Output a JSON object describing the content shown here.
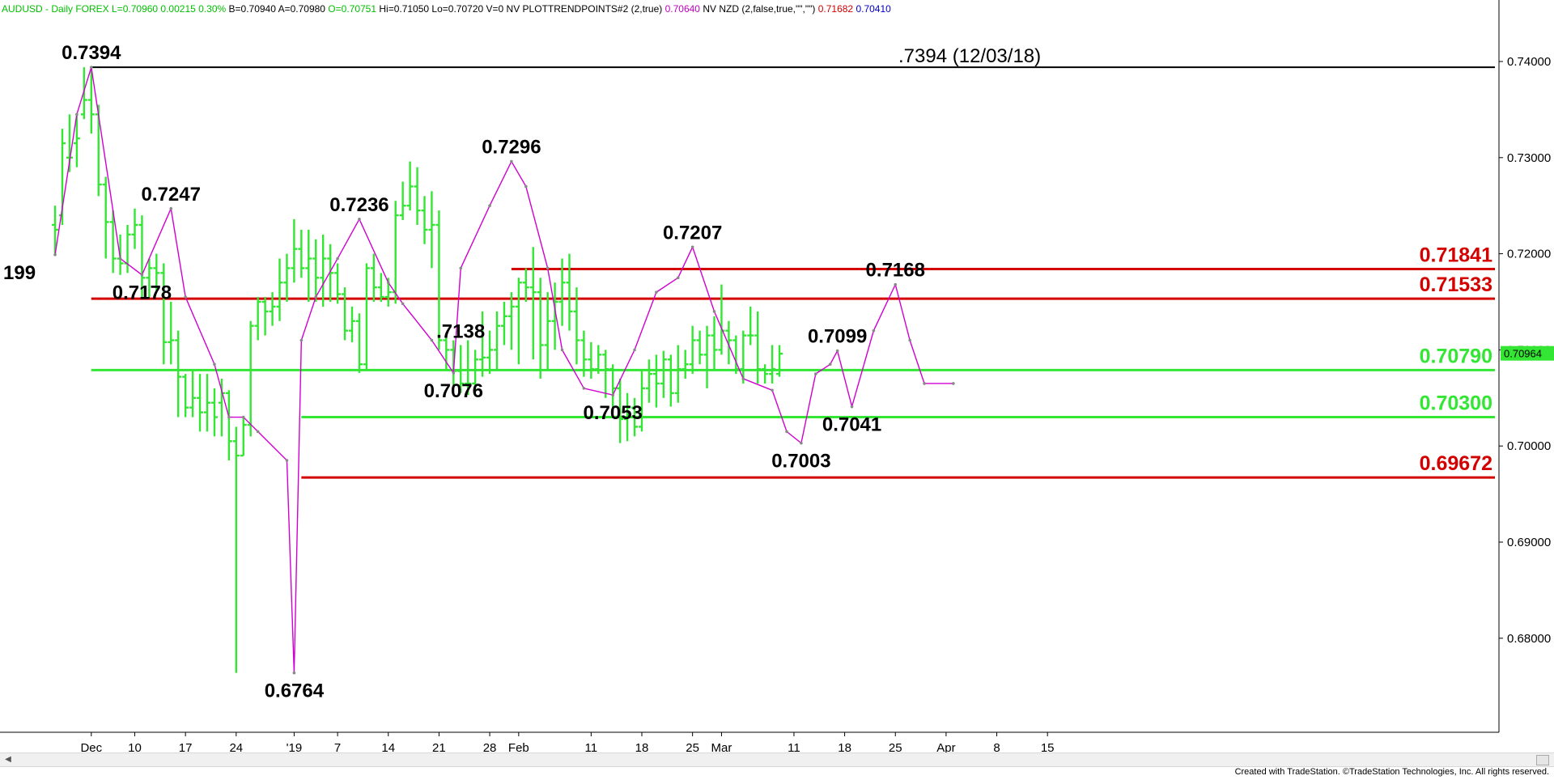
{
  "header": {
    "segments": [
      {
        "text": "AUDUSD - Daily  FOREX",
        "color": "#00c000"
      },
      {
        "text": "L=0.70960",
        "color": "#00c000"
      },
      {
        "text": "0.00215",
        "color": "#00c000"
      },
      {
        "text": "0.30%",
        "color": "#00c000"
      },
      {
        "text": "B=0.70940",
        "color": "#000000"
      },
      {
        "text": "A=0.70980",
        "color": "#000000"
      },
      {
        "text": "O=0.70751",
        "color": "#00c000"
      },
      {
        "text": "Hi=0.71050",
        "color": "#000000"
      },
      {
        "text": "Lo=0.70720",
        "color": "#000000"
      },
      {
        "text": "V=0",
        "color": "#000000"
      },
      {
        "text": "NV",
        "color": "#000000"
      },
      {
        "text": "PLOTTRENDPOINTS#2 (2,true)",
        "color": "#000000"
      },
      {
        "text": "0.70640",
        "color": "#c000c0"
      },
      {
        "text": "NV NZD (2,false,true,\"\",\"\")",
        "color": "#000000"
      },
      {
        "text": "0.71682",
        "color": "#d00000"
      },
      {
        "text": "0.70410",
        "color": "#0000c0"
      }
    ]
  },
  "footer": {
    "text": "Created with TradeStation. ©TradeStation Technologies, Inc. All rights reserved."
  },
  "colors": {
    "bar": "#33e633",
    "swing": "#d000d0",
    "support": "#33e633",
    "resistance": "#d40000",
    "ref": "#000000"
  },
  "chart_data": {
    "type": "ohlc-bar",
    "symbol": "AUDUSD",
    "timeframe": "Daily",
    "ylim": [
      0.67,
      0.745
    ],
    "y_ticks": [
      "0.68000",
      "0.69000",
      "0.70000",
      "0.71000",
      "0.72000",
      "0.73000",
      "0.74000"
    ],
    "x_ticks": [
      {
        "label": "Dec",
        "d": 4
      },
      {
        "label": "10",
        "d": 10
      },
      {
        "label": "17",
        "d": 17
      },
      {
        "label": "24",
        "d": 24
      },
      {
        "label": "'19",
        "d": 32
      },
      {
        "label": "7",
        "d": 38
      },
      {
        "label": "14",
        "d": 45
      },
      {
        "label": "21",
        "d": 52
      },
      {
        "label": "28",
        "d": 59
      },
      {
        "label": "Feb",
        "d": 63
      },
      {
        "label": "11",
        "d": 73
      },
      {
        "label": "18",
        "d": 80
      },
      {
        "label": "25",
        "d": 87
      },
      {
        "label": "Mar",
        "d": 91
      },
      {
        "label": "11",
        "d": 101
      },
      {
        "label": "18",
        "d": 108
      },
      {
        "label": "25",
        "d": 115
      },
      {
        "label": "Apr",
        "d": 122
      },
      {
        "label": "8",
        "d": 129
      },
      {
        "label": "15",
        "d": 136
      }
    ],
    "last_price": {
      "label": "0.70964",
      "value": 0.70964
    },
    "bars": [
      {
        "d": -1,
        "o": 0.723,
        "h": 0.725,
        "l": 0.7198,
        "c": 0.7225
      },
      {
        "d": 0,
        "o": 0.724,
        "h": 0.733,
        "l": 0.723,
        "c": 0.7315
      },
      {
        "d": 1,
        "o": 0.73,
        "h": 0.7345,
        "l": 0.7285,
        "c": 0.73
      },
      {
        "d": 2,
        "o": 0.7315,
        "h": 0.7345,
        "l": 0.729,
        "c": 0.732
      },
      {
        "d": 3,
        "o": 0.7345,
        "h": 0.7394,
        "l": 0.734,
        "c": 0.736
      },
      {
        "d": 4,
        "o": 0.736,
        "h": 0.7394,
        "l": 0.7325,
        "c": 0.7345
      },
      {
        "d": 5,
        "o": 0.7345,
        "h": 0.7355,
        "l": 0.726,
        "c": 0.7272
      },
      {
        "d": 6,
        "o": 0.7272,
        "h": 0.728,
        "l": 0.7195,
        "c": 0.7233
      },
      {
        "d": 7,
        "o": 0.7233,
        "h": 0.7245,
        "l": 0.718,
        "c": 0.7195
      },
      {
        "d": 8,
        "o": 0.7195,
        "h": 0.722,
        "l": 0.7178,
        "c": 0.719
      },
      {
        "d": 9,
        "o": 0.719,
        "h": 0.723,
        "l": 0.718,
        "c": 0.722
      },
      {
        "d": 10,
        "o": 0.722,
        "h": 0.7247,
        "l": 0.7205,
        "c": 0.723
      },
      {
        "d": 11,
        "o": 0.723,
        "h": 0.724,
        "l": 0.7155,
        "c": 0.7175
      },
      {
        "d": 12,
        "o": 0.7175,
        "h": 0.7195,
        "l": 0.7155,
        "c": 0.7185
      },
      {
        "d": 13,
        "o": 0.7185,
        "h": 0.72,
        "l": 0.716,
        "c": 0.718
      },
      {
        "d": 14,
        "o": 0.718,
        "h": 0.719,
        "l": 0.7085,
        "c": 0.7108
      },
      {
        "d": 15,
        "o": 0.7108,
        "h": 0.715,
        "l": 0.7085,
        "c": 0.711
      },
      {
        "d": 16,
        "o": 0.711,
        "h": 0.712,
        "l": 0.703,
        "c": 0.7072
      },
      {
        "d": 17,
        "o": 0.7072,
        "h": 0.7075,
        "l": 0.703,
        "c": 0.704
      },
      {
        "d": 18,
        "o": 0.704,
        "h": 0.7078,
        "l": 0.703,
        "c": 0.705
      },
      {
        "d": 19,
        "o": 0.705,
        "h": 0.7075,
        "l": 0.7015,
        "c": 0.7035
      },
      {
        "d": 20,
        "o": 0.7035,
        "h": 0.7075,
        "l": 0.7015,
        "c": 0.7045
      },
      {
        "d": 21,
        "o": 0.7045,
        "h": 0.706,
        "l": 0.701,
        "c": 0.703
      },
      {
        "d": 22,
        "o": 0.7045,
        "h": 0.707,
        "l": 0.701,
        "c": 0.7055
      },
      {
        "d": 23,
        "o": 0.7055,
        "h": 0.7058,
        "l": 0.6985,
        "c": 0.7005
      },
      {
        "d": 24,
        "o": 0.7005,
        "h": 0.702,
        "l": 0.6764,
        "c": 0.699
      },
      {
        "d": 25,
        "o": 0.699,
        "h": 0.703,
        "l": 0.699,
        "c": 0.7022
      },
      {
        "d": 26,
        "o": 0.7022,
        "h": 0.713,
        "l": 0.701,
        "c": 0.7125
      },
      {
        "d": 27,
        "o": 0.7125,
        "h": 0.7155,
        "l": 0.711,
        "c": 0.715
      },
      {
        "d": 28,
        "o": 0.715,
        "h": 0.7155,
        "l": 0.7115,
        "c": 0.714
      },
      {
        "d": 29,
        "o": 0.714,
        "h": 0.716,
        "l": 0.7125,
        "c": 0.7145
      },
      {
        "d": 30,
        "o": 0.7145,
        "h": 0.7195,
        "l": 0.713,
        "c": 0.717
      },
      {
        "d": 31,
        "o": 0.717,
        "h": 0.72,
        "l": 0.715,
        "c": 0.7185
      },
      {
        "d": 32,
        "o": 0.7185,
        "h": 0.7236,
        "l": 0.717,
        "c": 0.7205
      },
      {
        "d": 33,
        "o": 0.7205,
        "h": 0.7225,
        "l": 0.7175,
        "c": 0.7185
      },
      {
        "d": 34,
        "o": 0.7185,
        "h": 0.7225,
        "l": 0.715,
        "c": 0.7195
      },
      {
        "d": 35,
        "o": 0.7195,
        "h": 0.7215,
        "l": 0.715,
        "c": 0.7175
      },
      {
        "d": 36,
        "o": 0.7175,
        "h": 0.722,
        "l": 0.7145,
        "c": 0.7195
      },
      {
        "d": 37,
        "o": 0.7195,
        "h": 0.721,
        "l": 0.715,
        "c": 0.718
      },
      {
        "d": 38,
        "o": 0.718,
        "h": 0.719,
        "l": 0.7148,
        "c": 0.7158
      },
      {
        "d": 39,
        "o": 0.7158,
        "h": 0.7165,
        "l": 0.711,
        "c": 0.712
      },
      {
        "d": 40,
        "o": 0.712,
        "h": 0.7145,
        "l": 0.7108,
        "c": 0.713
      },
      {
        "d": 41,
        "o": 0.713,
        "h": 0.7138,
        "l": 0.7076,
        "c": 0.7085
      },
      {
        "d": 42,
        "o": 0.7085,
        "h": 0.719,
        "l": 0.708,
        "c": 0.7185
      },
      {
        "d": 43,
        "o": 0.7185,
        "h": 0.72,
        "l": 0.715,
        "c": 0.7165
      },
      {
        "d": 44,
        "o": 0.7165,
        "h": 0.718,
        "l": 0.715,
        "c": 0.7155
      },
      {
        "d": 45,
        "o": 0.7155,
        "h": 0.7175,
        "l": 0.7145,
        "c": 0.716
      },
      {
        "d": 46,
        "o": 0.716,
        "h": 0.7255,
        "l": 0.7148,
        "c": 0.724
      },
      {
        "d": 47,
        "o": 0.724,
        "h": 0.7275,
        "l": 0.7235,
        "c": 0.725
      },
      {
        "d": 48,
        "o": 0.725,
        "h": 0.7296,
        "l": 0.7245,
        "c": 0.727
      },
      {
        "d": 49,
        "o": 0.727,
        "h": 0.729,
        "l": 0.723,
        "c": 0.7245
      },
      {
        "d": 50,
        "o": 0.7245,
        "h": 0.726,
        "l": 0.721,
        "c": 0.7225
      },
      {
        "d": 51,
        "o": 0.7225,
        "h": 0.7265,
        "l": 0.7185,
        "c": 0.723
      },
      {
        "d": 52,
        "o": 0.723,
        "h": 0.7245,
        "l": 0.71,
        "c": 0.711
      },
      {
        "d": 53,
        "o": 0.711,
        "h": 0.7115,
        "l": 0.708,
        "c": 0.71
      },
      {
        "d": 54,
        "o": 0.71,
        "h": 0.711,
        "l": 0.706,
        "c": 0.7078
      },
      {
        "d": 55,
        "o": 0.7078,
        "h": 0.7105,
        "l": 0.7055,
        "c": 0.7065
      },
      {
        "d": 56,
        "o": 0.7065,
        "h": 0.711,
        "l": 0.7053,
        "c": 0.7065
      },
      {
        "d": 57,
        "o": 0.7065,
        "h": 0.71,
        "l": 0.7058,
        "c": 0.709
      },
      {
        "d": 58,
        "o": 0.709,
        "h": 0.714,
        "l": 0.7072,
        "c": 0.7092
      },
      {
        "d": 59,
        "o": 0.7092,
        "h": 0.712,
        "l": 0.7075,
        "c": 0.71
      },
      {
        "d": 60,
        "o": 0.71,
        "h": 0.714,
        "l": 0.7078,
        "c": 0.7125
      },
      {
        "d": 61,
        "o": 0.7125,
        "h": 0.715,
        "l": 0.7105,
        "c": 0.7135
      },
      {
        "d": 62,
        "o": 0.7135,
        "h": 0.716,
        "l": 0.71,
        "c": 0.7145
      },
      {
        "d": 63,
        "o": 0.7145,
        "h": 0.7175,
        "l": 0.7085,
        "c": 0.717
      },
      {
        "d": 64,
        "o": 0.717,
        "h": 0.7185,
        "l": 0.715,
        "c": 0.7165
      },
      {
        "d": 65,
        "o": 0.7165,
        "h": 0.7207,
        "l": 0.709,
        "c": 0.716
      },
      {
        "d": 66,
        "o": 0.716,
        "h": 0.7175,
        "l": 0.707,
        "c": 0.7105
      },
      {
        "d": 67,
        "o": 0.7105,
        "h": 0.716,
        "l": 0.708,
        "c": 0.713
      },
      {
        "d": 68,
        "o": 0.713,
        "h": 0.717,
        "l": 0.71,
        "c": 0.715
      },
      {
        "d": 69,
        "o": 0.715,
        "h": 0.7195,
        "l": 0.7125,
        "c": 0.717
      },
      {
        "d": 70,
        "o": 0.717,
        "h": 0.72,
        "l": 0.712,
        "c": 0.714
      },
      {
        "d": 71,
        "o": 0.714,
        "h": 0.7165,
        "l": 0.7085,
        "c": 0.711
      },
      {
        "d": 72,
        "o": 0.711,
        "h": 0.712,
        "l": 0.7072,
        "c": 0.709
      },
      {
        "d": 73,
        "o": 0.709,
        "h": 0.7108,
        "l": 0.707,
        "c": 0.708
      },
      {
        "d": 74,
        "o": 0.708,
        "h": 0.7105,
        "l": 0.7075,
        "c": 0.7095
      },
      {
        "d": 75,
        "o": 0.7095,
        "h": 0.71,
        "l": 0.705,
        "c": 0.708
      },
      {
        "d": 76,
        "o": 0.708,
        "h": 0.7085,
        "l": 0.7035,
        "c": 0.706
      },
      {
        "d": 77,
        "o": 0.706,
        "h": 0.707,
        "l": 0.7003,
        "c": 0.7028
      },
      {
        "d": 78,
        "o": 0.7028,
        "h": 0.7055,
        "l": 0.7005,
        "c": 0.704
      },
      {
        "d": 79,
        "o": 0.704,
        "h": 0.705,
        "l": 0.701,
        "c": 0.702
      },
      {
        "d": 80,
        "o": 0.702,
        "h": 0.708,
        "l": 0.7015,
        "c": 0.706
      },
      {
        "d": 81,
        "o": 0.706,
        "h": 0.709,
        "l": 0.7045,
        "c": 0.7075
      },
      {
        "d": 82,
        "o": 0.7075,
        "h": 0.7095,
        "l": 0.704,
        "c": 0.7065
      },
      {
        "d": 83,
        "o": 0.7065,
        "h": 0.7099,
        "l": 0.705,
        "c": 0.709
      },
      {
        "d": 84,
        "o": 0.709,
        "h": 0.7095,
        "l": 0.7041,
        "c": 0.7055
      },
      {
        "d": 85,
        "o": 0.7055,
        "h": 0.7105,
        "l": 0.7045,
        "c": 0.708
      },
      {
        "d": 86,
        "o": 0.708,
        "h": 0.71,
        "l": 0.707,
        "c": 0.7085
      },
      {
        "d": 87,
        "o": 0.7085,
        "h": 0.7125,
        "l": 0.7075,
        "c": 0.711
      },
      {
        "d": 88,
        "o": 0.711,
        "h": 0.712,
        "l": 0.7085,
        "c": 0.7095
      },
      {
        "d": 89,
        "o": 0.7095,
        "h": 0.7125,
        "l": 0.706,
        "c": 0.7115
      },
      {
        "d": 90,
        "o": 0.7115,
        "h": 0.7135,
        "l": 0.708,
        "c": 0.71
      },
      {
        "d": 91,
        "o": 0.71,
        "h": 0.7168,
        "l": 0.7095,
        "c": 0.712
      },
      {
        "d": 92,
        "o": 0.712,
        "h": 0.713,
        "l": 0.7085,
        "c": 0.711
      },
      {
        "d": 93,
        "o": 0.711,
        "h": 0.7115,
        "l": 0.7075,
        "c": 0.708
      },
      {
        "d": 94,
        "o": 0.708,
        "h": 0.712,
        "l": 0.7065,
        "c": 0.7115
      },
      {
        "d": 95,
        "o": 0.7115,
        "h": 0.7145,
        "l": 0.7105,
        "c": 0.7115
      },
      {
        "d": 96,
        "o": 0.7115,
        "h": 0.714,
        "l": 0.7065,
        "c": 0.708
      },
      {
        "d": 97,
        "o": 0.708,
        "h": 0.7085,
        "l": 0.7065,
        "c": 0.7075
      },
      {
        "d": 98,
        "o": 0.7075,
        "h": 0.7105,
        "l": 0.7065,
        "c": 0.708
      },
      {
        "d": 99,
        "o": 0.7075,
        "h": 0.7105,
        "l": 0.7072,
        "c": 0.7096
      }
    ],
    "swing_points": [
      {
        "d": -1,
        "v": 0.7199
      },
      {
        "d": 2,
        "v": 0.7345
      },
      {
        "d": 4,
        "v": 0.7394
      },
      {
        "d": 8,
        "v": 0.7195
      },
      {
        "d": 11,
        "v": 0.7178
      },
      {
        "d": 15,
        "v": 0.7247
      },
      {
        "d": 17,
        "v": 0.7155
      },
      {
        "d": 21,
        "v": 0.7085
      },
      {
        "d": 23,
        "v": 0.703
      },
      {
        "d": 25,
        "v": 0.703
      },
      {
        "d": 27,
        "v": 0.7015
      },
      {
        "d": 31,
        "v": 0.6985
      },
      {
        "d": 32,
        "v": 0.6764
      },
      {
        "d": 33,
        "v": 0.711
      },
      {
        "d": 35,
        "v": 0.7155
      },
      {
        "d": 38,
        "v": 0.7195
      },
      {
        "d": 41,
        "v": 0.7236
      },
      {
        "d": 45,
        "v": 0.717
      },
      {
        "d": 47,
        "v": 0.7148
      },
      {
        "d": 51,
        "v": 0.711
      },
      {
        "d": 54,
        "v": 0.7076
      },
      {
        "d": 55,
        "v": 0.7185
      },
      {
        "d": 59,
        "v": 0.725
      },
      {
        "d": 62,
        "v": 0.7296
      },
      {
        "d": 64,
        "v": 0.727
      },
      {
        "d": 67,
        "v": 0.7185
      },
      {
        "d": 69,
        "v": 0.71
      },
      {
        "d": 72,
        "v": 0.706
      },
      {
        "d": 76,
        "v": 0.7053
      },
      {
        "d": 79,
        "v": 0.71
      },
      {
        "d": 82,
        "v": 0.716
      },
      {
        "d": 85,
        "v": 0.7175
      },
      {
        "d": 87,
        "v": 0.7207
      },
      {
        "d": 90,
        "v": 0.714
      },
      {
        "d": 94,
        "v": 0.707
      },
      {
        "d": 98,
        "v": 0.7058
      },
      {
        "d": 100,
        "v": 0.7015
      },
      {
        "d": 102,
        "v": 0.7003
      },
      {
        "d": 104,
        "v": 0.7075
      },
      {
        "d": 106,
        "v": 0.7085
      },
      {
        "d": 107,
        "v": 0.7099
      },
      {
        "d": 109,
        "v": 0.7041
      },
      {
        "d": 112,
        "v": 0.712
      },
      {
        "d": 115,
        "v": 0.7168
      },
      {
        "d": 117,
        "v": 0.711
      },
      {
        "d": 119,
        "v": 0.7065
      },
      {
        "d": 123,
        "v": 0.7065
      }
    ],
    "lines": [
      {
        "kind": "ref",
        "value": 0.7394,
        "d_start": 4,
        "label": ".7394 (12/03/18)"
      },
      {
        "kind": "resistance",
        "value": 0.71841,
        "d_start": 62,
        "label": "0.71841"
      },
      {
        "kind": "resistance",
        "value": 0.71533,
        "d_start": 4,
        "label": "0.71533"
      },
      {
        "kind": "support",
        "value": 0.7079,
        "d_start": 4,
        "label": "0.70790"
      },
      {
        "kind": "support",
        "value": 0.703,
        "d_start": 33,
        "label": "0.70300"
      },
      {
        "kind": "resistance",
        "value": 0.69672,
        "d_start": 33,
        "label": "0.69672"
      }
    ],
    "annotations": [
      {
        "text": "0.7394",
        "d": 4,
        "v": 0.7394,
        "pos": "above"
      },
      {
        "text": "199",
        "d": 0,
        "v": 0.7199,
        "pos": "below"
      },
      {
        "text": "0.7247",
        "d": 15,
        "v": 0.7247,
        "pos": "above"
      },
      {
        "text": "0.7178",
        "d": 11,
        "v": 0.7178,
        "pos": "below"
      },
      {
        "text": "0.7236",
        "d": 41,
        "v": 0.7236,
        "pos": "above"
      },
      {
        "text": ".7138",
        "d": 57,
        "v": 0.7138,
        "pos": "below"
      },
      {
        "text": "0.7076",
        "d": 54,
        "v": 0.7076,
        "pos": "below"
      },
      {
        "text": "0.7296",
        "d": 62,
        "v": 0.7296,
        "pos": "above"
      },
      {
        "text": "0.6764",
        "d": 32,
        "v": 0.6764,
        "pos": "below"
      },
      {
        "text": "0.7207",
        "d": 87,
        "v": 0.7207,
        "pos": "above"
      },
      {
        "text": "0.7053",
        "d": 76,
        "v": 0.7053,
        "pos": "below"
      },
      {
        "text": "0.7003",
        "d": 102,
        "v": 0.7003,
        "pos": "below"
      },
      {
        "text": "0.7099",
        "d": 107,
        "v": 0.7099,
        "pos": "above"
      },
      {
        "text": "0.7041",
        "d": 109,
        "v": 0.7041,
        "pos": "below"
      },
      {
        "text": "0.7168",
        "d": 115,
        "v": 0.7168,
        "pos": "above"
      }
    ]
  }
}
